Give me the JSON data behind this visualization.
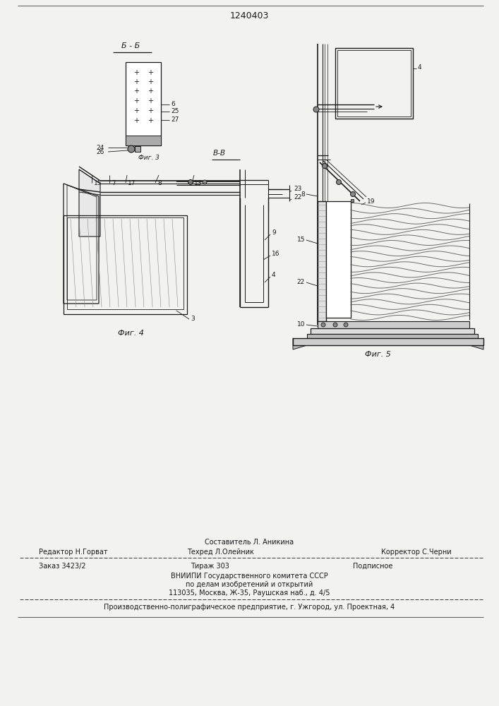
{
  "patent_number": "1240403",
  "bg_color": "#f2f2ee",
  "line_color": "#1a1a1a",
  "fig4_caption": "Фиг. 4",
  "fig5_caption": "Фиг. 5",
  "section_label_bb": "Б - Б",
  "section_label_vv": "В-В",
  "fig3_ref": "Фиг. 3",
  "footer_sestavitel": "Составитель Л. Аникина",
  "footer_redaktor": "Редактор Н.Горват",
  "footer_tehred": "Техред Л.Олейник",
  "footer_korrektor": "Корректор С.Черни",
  "footer_zakaz": "Заказ 3423/2",
  "footer_tirazh": "Тираж 303",
  "footer_podpisnoe": "Подписное",
  "footer_vniipd": "ВНИИПИ Государственного комитета СССР",
  "footer_po_delam": "по делам изобретений и открытий",
  "footer_addr": "113035, Москва, Ж-35, Раушская наб., д. 4/5",
  "footer_last": "Производственно-полиграфическое предприятие, г. Ужгород, ул. Проектная, 4"
}
